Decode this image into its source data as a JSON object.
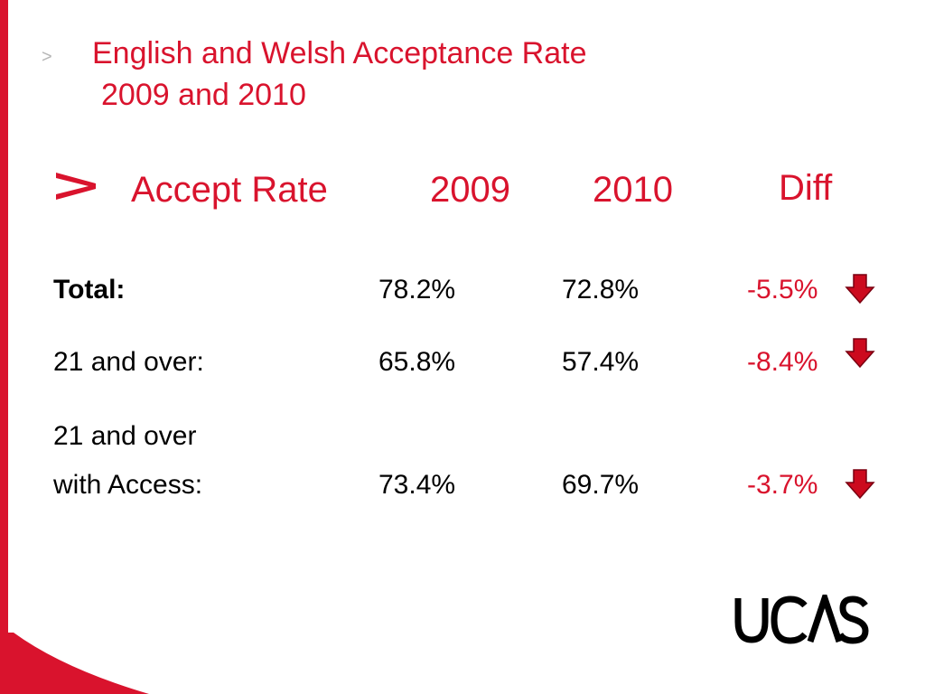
{
  "slide": {
    "title_line1": "English and Welsh Acceptance Rate",
    "title_line2": "2009 and 2010",
    "title_chevron": ">"
  },
  "table": {
    "headers": [
      "Accept Rate",
      "2009",
      "2010",
      "Diff"
    ],
    "rows": [
      {
        "label": "Total:",
        "v2009": "78.2%",
        "v2010": "72.8%",
        "diff": "-5.5%",
        "trend": "down"
      },
      {
        "label": "21 and over:",
        "v2009": "65.8%",
        "v2010": "57.4%",
        "diff": "-8.4%",
        "trend": "down"
      },
      {
        "label_line1": "21 and over",
        "label_line2": "with Access:",
        "v2009": "73.4%",
        "v2010": "69.7%",
        "diff": "-3.7%",
        "trend": "down"
      }
    ]
  },
  "logo": {
    "text": "UCAS"
  },
  "colors": {
    "accent": "#d9132d",
    "text": "#000000",
    "muted": "#b5b5b5"
  },
  "icons": {
    "trend": "down-arrow-icon",
    "bullet": "chevron-right-icon"
  }
}
